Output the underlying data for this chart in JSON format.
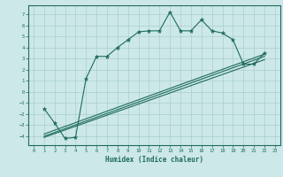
{
  "xlabel": "Humidex (Indice chaleur)",
  "ylabel": "",
  "bg_color": "#cde8e8",
  "grid_color": "#aacfcf",
  "line_color": "#1e6b5e",
  "xlim": [
    -0.5,
    23.5
  ],
  "ylim": [
    -4.8,
    7.8
  ],
  "xticks": [
    0,
    1,
    2,
    3,
    4,
    5,
    6,
    7,
    8,
    9,
    10,
    11,
    12,
    13,
    14,
    15,
    16,
    17,
    18,
    19,
    20,
    21,
    22,
    23
  ],
  "yticks": [
    -4,
    -3,
    -2,
    -1,
    0,
    1,
    2,
    3,
    4,
    5,
    6,
    7
  ],
  "main_x": [
    1,
    2,
    3,
    4,
    5,
    6,
    7,
    8,
    9,
    10,
    11,
    12,
    13,
    14,
    15,
    16,
    17,
    18,
    19,
    20,
    21,
    22
  ],
  "main_y": [
    -1.5,
    -2.8,
    -4.2,
    -4.1,
    1.2,
    3.2,
    3.2,
    4.0,
    4.7,
    5.4,
    5.5,
    5.5,
    7.2,
    5.5,
    5.5,
    6.5,
    5.5,
    5.3,
    4.7,
    2.5,
    2.5,
    3.5
  ],
  "line1_x": [
    1,
    22
  ],
  "line1_y": [
    -3.8,
    3.4
  ],
  "line2_x": [
    1,
    22
  ],
  "line2_y": [
    -4.0,
    3.2
  ],
  "line3_x": [
    1,
    22
  ],
  "line3_y": [
    -4.1,
    2.9
  ]
}
